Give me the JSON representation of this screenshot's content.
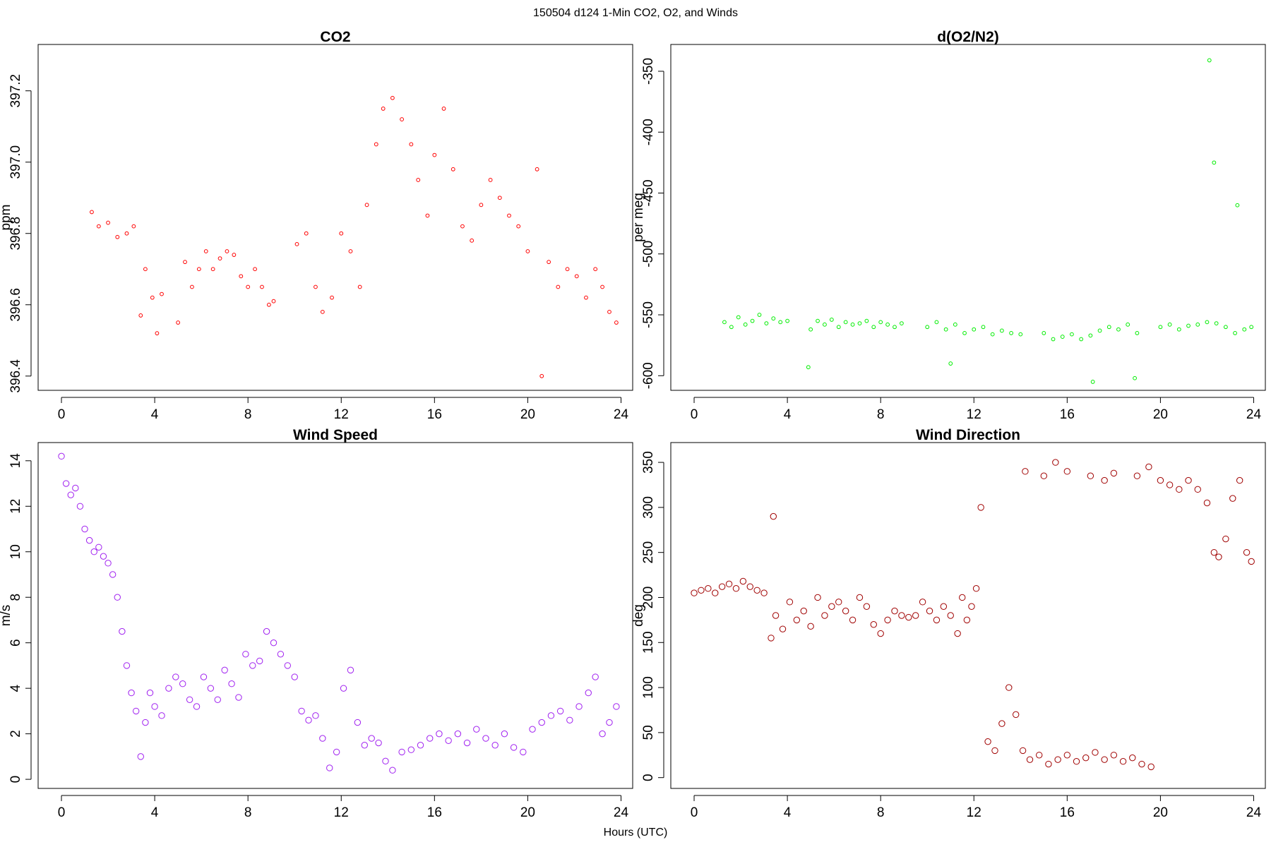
{
  "figure": {
    "title": "150504   d124   1-Min CO2, O2, and Winds",
    "xlabel": "Hours (UTC)"
  },
  "chart_data": [
    {
      "id": "co2",
      "type": "scatter",
      "title": "CO2",
      "xlabel": "",
      "ylabel": "ppm",
      "xlim": [
        -1,
        24.5
      ],
      "ylim": [
        396.36,
        397.33
      ],
      "xticks": [
        0,
        4,
        8,
        12,
        16,
        20,
        24
      ],
      "yticks": [
        396.4,
        396.6,
        396.8,
        397.0,
        397.2
      ],
      "ytick_labels": [
        "396.4",
        "396.6",
        "396.8",
        "397.0",
        "397.2"
      ],
      "color": "#ff0000",
      "marker_size": "small",
      "x": [
        1.3,
        1.6,
        2.0,
        2.4,
        2.8,
        3.1,
        3.4,
        3.6,
        3.9,
        4.1,
        4.3,
        5.0,
        5.3,
        5.6,
        5.9,
        6.2,
        6.5,
        6.8,
        7.1,
        7.4,
        7.7,
        8.0,
        8.3,
        8.6,
        8.9,
        9.1,
        10.1,
        10.5,
        10.9,
        11.2,
        11.6,
        12.0,
        12.4,
        12.8,
        13.1,
        13.5,
        13.8,
        14.2,
        14.6,
        15.0,
        15.3,
        15.7,
        16.0,
        16.4,
        16.8,
        17.2,
        17.6,
        18.0,
        18.4,
        18.8,
        19.2,
        19.6,
        20.0,
        20.4,
        20.6,
        20.9,
        21.3,
        21.7,
        22.1,
        22.5,
        22.9,
        23.2,
        23.5,
        23.8
      ],
      "y": [
        396.86,
        396.82,
        396.83,
        396.79,
        396.8,
        396.82,
        396.57,
        396.7,
        396.62,
        396.52,
        396.63,
        396.55,
        396.72,
        396.65,
        396.7,
        396.75,
        396.7,
        396.73,
        396.75,
        396.74,
        396.68,
        396.65,
        396.7,
        396.65,
        396.6,
        396.61,
        396.77,
        396.8,
        396.65,
        396.58,
        396.62,
        396.8,
        396.75,
        396.65,
        396.88,
        397.05,
        397.15,
        397.18,
        397.12,
        397.05,
        396.95,
        396.85,
        397.02,
        397.15,
        396.98,
        396.82,
        396.78,
        396.88,
        396.95,
        396.9,
        396.85,
        396.82,
        396.75,
        396.98,
        396.4,
        396.72,
        396.65,
        396.7,
        396.68,
        396.62,
        396.7,
        396.65,
        396.58,
        396.55
      ]
    },
    {
      "id": "o2",
      "type": "scatter",
      "title": "d(O2/N2)",
      "xlabel": "",
      "ylabel": "per meg",
      "xlim": [
        -1,
        24.5
      ],
      "ylim": [
        -612,
        -328
      ],
      "xticks": [
        0,
        4,
        8,
        12,
        16,
        20,
        24
      ],
      "yticks": [
        -600,
        -550,
        -500,
        -450,
        -400,
        -350
      ],
      "ytick_labels": [
        "-600",
        "-550",
        "-500",
        "-450",
        "-400",
        "-350"
      ],
      "color": "#00ee00",
      "marker_size": "small",
      "x": [
        1.3,
        1.6,
        1.9,
        2.2,
        2.5,
        2.8,
        3.1,
        3.4,
        3.7,
        4.0,
        5.0,
        5.3,
        5.6,
        5.9,
        6.2,
        6.5,
        6.8,
        7.1,
        7.4,
        7.7,
        8.0,
        8.3,
        8.6,
        8.9,
        10.0,
        10.4,
        10.8,
        11.2,
        11.6,
        12.0,
        12.4,
        12.8,
        13.2,
        13.6,
        14.0,
        15.0,
        15.4,
        15.8,
        16.2,
        16.6,
        17.0,
        17.4,
        17.8,
        18.2,
        18.6,
        19.0,
        20.0,
        20.4,
        20.8,
        21.2,
        21.6,
        22.0,
        22.4,
        22.8,
        23.2,
        23.6,
        23.9,
        22.1,
        22.3,
        23.3,
        17.1,
        11.0,
        18.9,
        4.9
      ],
      "y": [
        -556,
        -560,
        -552,
        -558,
        -555,
        -550,
        -557,
        -553,
        -556,
        -555,
        -562,
        -555,
        -558,
        -554,
        -560,
        -556,
        -558,
        -557,
        -555,
        -560,
        -556,
        -558,
        -560,
        -557,
        -560,
        -556,
        -562,
        -558,
        -565,
        -562,
        -560,
        -566,
        -563,
        -565,
        -566,
        -565,
        -570,
        -568,
        -566,
        -570,
        -567,
        -563,
        -560,
        -562,
        -558,
        -565,
        -560,
        -558,
        -562,
        -559,
        -558,
        -556,
        -557,
        -560,
        -565,
        -562,
        -560,
        -341,
        -425,
        -460,
        -605,
        -590,
        -602,
        -593
      ]
    },
    {
      "id": "wind-speed",
      "type": "scatter",
      "title": "Wind Speed",
      "xlabel": "",
      "ylabel": "m/s",
      "xlim": [
        -1,
        24.5
      ],
      "ylim": [
        -0.4,
        14.8
      ],
      "xticks": [
        0,
        4,
        8,
        12,
        16,
        20,
        24
      ],
      "yticks": [
        0,
        2,
        4,
        6,
        8,
        10,
        12,
        14
      ],
      "ytick_labels": [
        "0",
        "2",
        "4",
        "6",
        "8",
        "10",
        "12",
        "14"
      ],
      "color": "#a020f0",
      "marker_size": "large",
      "x": [
        0.0,
        0.2,
        0.4,
        0.6,
        0.8,
        1.0,
        1.2,
        1.4,
        1.6,
        1.8,
        2.0,
        2.2,
        2.4,
        2.6,
        2.8,
        3.0,
        3.2,
        3.4,
        3.6,
        3.8,
        4.0,
        4.3,
        4.6,
        4.9,
        5.2,
        5.5,
        5.8,
        6.1,
        6.4,
        6.7,
        7.0,
        7.3,
        7.6,
        7.9,
        8.2,
        8.5,
        8.8,
        9.1,
        9.4,
        9.7,
        10.0,
        10.3,
        10.6,
        10.9,
        11.2,
        11.5,
        11.8,
        12.1,
        12.4,
        12.7,
        13.0,
        13.3,
        13.6,
        13.9,
        14.2,
        14.6,
        15.0,
        15.4,
        15.8,
        16.2,
        16.6,
        17.0,
        17.4,
        17.8,
        18.2,
        18.6,
        19.0,
        19.4,
        19.8,
        20.2,
        20.6,
        21.0,
        21.4,
        21.8,
        22.2,
        22.6,
        22.9,
        23.2,
        23.5,
        23.8
      ],
      "y": [
        14.2,
        13.0,
        12.5,
        12.8,
        12.0,
        11.0,
        10.5,
        10.0,
        10.2,
        9.8,
        9.5,
        9.0,
        8.0,
        6.5,
        5.0,
        3.8,
        3.0,
        1.0,
        2.5,
        3.8,
        3.2,
        2.8,
        4.0,
        4.5,
        4.2,
        3.5,
        3.2,
        4.5,
        4.0,
        3.5,
        4.8,
        4.2,
        3.6,
        5.5,
        5.0,
        5.2,
        6.5,
        6.0,
        5.5,
        5.0,
        4.5,
        3.0,
        2.6,
        2.8,
        1.8,
        0.5,
        1.2,
        4.0,
        4.8,
        2.5,
        1.5,
        1.8,
        1.6,
        0.8,
        0.4,
        1.2,
        1.3,
        1.5,
        1.8,
        2.0,
        1.7,
        2.0,
        1.6,
        2.2,
        1.8,
        1.5,
        2.0,
        1.4,
        1.2,
        2.2,
        2.5,
        2.8,
        3.0,
        2.6,
        3.2,
        3.8,
        4.5,
        2.0,
        2.5,
        3.2
      ]
    },
    {
      "id": "wind-direction",
      "type": "scatter",
      "title": "Wind Direction",
      "xlabel": "",
      "ylabel": "deg",
      "xlim": [
        -1,
        24.5
      ],
      "ylim": [
        -12,
        372
      ],
      "xticks": [
        0,
        4,
        8,
        12,
        16,
        20,
        24
      ],
      "yticks": [
        0,
        50,
        100,
        150,
        200,
        250,
        300,
        350
      ],
      "ytick_labels": [
        "0",
        "50",
        "100",
        "150",
        "200",
        "250",
        "300",
        "350"
      ],
      "color": "#a00000",
      "marker_size": "large",
      "x": [
        0.0,
        0.3,
        0.6,
        0.9,
        1.2,
        1.5,
        1.8,
        2.1,
        2.4,
        2.7,
        3.0,
        3.3,
        3.5,
        3.8,
        4.1,
        4.4,
        4.7,
        5.0,
        5.3,
        5.6,
        5.9,
        6.2,
        6.5,
        6.8,
        7.1,
        7.4,
        7.7,
        8.0,
        8.3,
        8.6,
        8.9,
        9.2,
        9.5,
        9.8,
        10.1,
        10.4,
        10.7,
        11.0,
        11.3,
        11.5,
        11.7,
        11.9,
        12.1,
        12.3,
        12.6,
        12.9,
        13.2,
        13.5,
        13.8,
        14.1,
        14.4,
        14.8,
        15.2,
        15.6,
        16.0,
        16.4,
        16.8,
        17.2,
        17.6,
        18.0,
        18.4,
        18.8,
        19.2,
        19.6,
        14.2,
        15.0,
        15.5,
        16.0,
        17.0,
        17.6,
        18.0,
        19.0,
        19.5,
        20.0,
        20.4,
        20.8,
        21.2,
        21.6,
        22.0,
        22.3,
        22.5,
        22.8,
        23.1,
        23.4,
        23.7,
        23.9,
        3.4
      ],
      "y": [
        205,
        208,
        210,
        205,
        212,
        215,
        210,
        218,
        212,
        208,
        205,
        155,
        180,
        165,
        195,
        175,
        185,
        168,
        200,
        180,
        190,
        195,
        185,
        175,
        200,
        190,
        170,
        160,
        175,
        185,
        180,
        178,
        180,
        195,
        185,
        175,
        190,
        180,
        160,
        200,
        175,
        190,
        210,
        300,
        40,
        30,
        60,
        100,
        70,
        30,
        20,
        25,
        15,
        20,
        25,
        18,
        22,
        28,
        20,
        25,
        18,
        22,
        15,
        12,
        340,
        335,
        350,
        340,
        335,
        330,
        338,
        335,
        345,
        330,
        325,
        320,
        330,
        320,
        305,
        250,
        245,
        265,
        310,
        330,
        250,
        240,
        290
      ]
    }
  ]
}
